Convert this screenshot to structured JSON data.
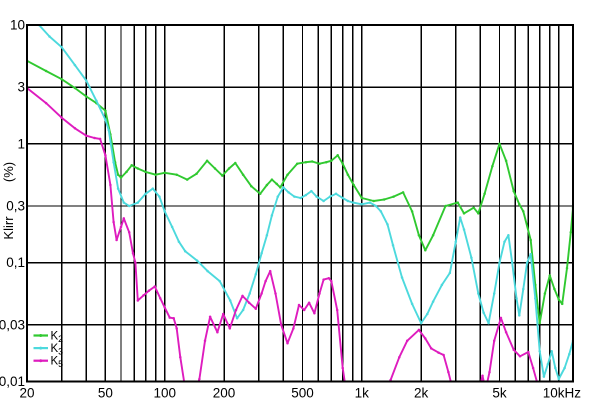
{
  "chart_data": {
    "type": "line",
    "title": "",
    "x_axis": {
      "scale": "log",
      "min_hz": 20,
      "max_hz": 11800,
      "ticks": [
        {
          "f": 20,
          "label": "20"
        },
        {
          "f": 30,
          "label": ""
        },
        {
          "f": 40,
          "label": ""
        },
        {
          "f": 50,
          "label": "50"
        },
        {
          "f": 60,
          "label": ""
        },
        {
          "f": 70,
          "label": ""
        },
        {
          "f": 80,
          "label": ""
        },
        {
          "f": 90,
          "label": ""
        },
        {
          "f": 100,
          "label": "100"
        },
        {
          "f": 200,
          "label": "200"
        },
        {
          "f": 300,
          "label": ""
        },
        {
          "f": 400,
          "label": ""
        },
        {
          "f": 500,
          "label": "500"
        },
        {
          "f": 600,
          "label": ""
        },
        {
          "f": 700,
          "label": ""
        },
        {
          "f": 800,
          "label": ""
        },
        {
          "f": 900,
          "label": ""
        },
        {
          "f": 1000,
          "label": "1k"
        },
        {
          "f": 2000,
          "label": "2k"
        },
        {
          "f": 3000,
          "label": ""
        },
        {
          "f": 4000,
          "label": ""
        },
        {
          "f": 5000,
          "label": "5k"
        },
        {
          "f": 6000,
          "label": ""
        },
        {
          "f": 7000,
          "label": ""
        },
        {
          "f": 8000,
          "label": ""
        },
        {
          "f": 9000,
          "label": ""
        },
        {
          "f": 10000,
          "label": "10kHz"
        }
      ]
    },
    "y_axis": {
      "scale": "log",
      "min": 0.01,
      "max": 10,
      "title_main": "Klirr",
      "title_unit": "(%)",
      "ticks": [
        {
          "v": 10,
          "label": "10"
        },
        {
          "v": 3,
          "label": "3"
        },
        {
          "v": 1,
          "label": "1"
        },
        {
          "v": 0.3,
          "label": "0,3"
        },
        {
          "v": 0.1,
          "label": "0,1"
        },
        {
          "v": 0.03,
          "label": "0,03"
        },
        {
          "v": 0.01,
          "label": "0,01"
        }
      ]
    },
    "grid": true,
    "legend_position": "bottom-left-inside",
    "colors": {
      "grid": "#000000",
      "frame": "#000000",
      "background": "#ffffff"
    },
    "series": [
      {
        "name": "K2",
        "label_base": "K",
        "label_sub": "2",
        "color": "#30c930",
        "points": [
          [
            20,
            5.0
          ],
          [
            25,
            4.1
          ],
          [
            30,
            3.5
          ],
          [
            35,
            2.95
          ],
          [
            40,
            2.5
          ],
          [
            45,
            2.2
          ],
          [
            50,
            1.9
          ],
          [
            53,
            1.2
          ],
          [
            56,
            0.7
          ],
          [
            58,
            0.55
          ],
          [
            60,
            0.52
          ],
          [
            64,
            0.58
          ],
          [
            68,
            0.66
          ],
          [
            73,
            0.62
          ],
          [
            80,
            0.58
          ],
          [
            90,
            0.55
          ],
          [
            100,
            0.57
          ],
          [
            115,
            0.55
          ],
          [
            130,
            0.5
          ],
          [
            145,
            0.56
          ],
          [
            164,
            0.72
          ],
          [
            180,
            0.62
          ],
          [
            196,
            0.54
          ],
          [
            212,
            0.62
          ],
          [
            228,
            0.69
          ],
          [
            250,
            0.55
          ],
          [
            275,
            0.44
          ],
          [
            305,
            0.38
          ],
          [
            330,
            0.45
          ],
          [
            350,
            0.5
          ],
          [
            370,
            0.46
          ],
          [
            386,
            0.43
          ],
          [
            420,
            0.55
          ],
          [
            470,
            0.68
          ],
          [
            520,
            0.7
          ],
          [
            560,
            0.71
          ],
          [
            610,
            0.68
          ],
          [
            660,
            0.7
          ],
          [
            700,
            0.72
          ],
          [
            755,
            0.8
          ],
          [
            800,
            0.68
          ],
          [
            850,
            0.55
          ],
          [
            910,
            0.45
          ],
          [
            1000,
            0.35
          ],
          [
            1150,
            0.33
          ],
          [
            1300,
            0.34
          ],
          [
            1450,
            0.36
          ],
          [
            1620,
            0.39
          ],
          [
            1800,
            0.27
          ],
          [
            1950,
            0.17
          ],
          [
            2100,
            0.127
          ],
          [
            2300,
            0.17
          ],
          [
            2660,
            0.3
          ],
          [
            3070,
            0.32
          ],
          [
            3300,
            0.26
          ],
          [
            3700,
            0.29
          ],
          [
            3900,
            0.26
          ],
          [
            4200,
            0.38
          ],
          [
            4600,
            0.65
          ],
          [
            5000,
            1.0
          ],
          [
            5400,
            0.72
          ],
          [
            5900,
            0.4
          ],
          [
            6300,
            0.31
          ],
          [
            6600,
            0.27
          ],
          [
            7200,
            0.155
          ],
          [
            7600,
            0.065
          ],
          [
            8000,
            0.031
          ],
          [
            8500,
            0.055
          ],
          [
            9000,
            0.078
          ],
          [
            9500,
            0.06
          ],
          [
            10000,
            0.049
          ],
          [
            10400,
            0.045
          ],
          [
            11000,
            0.09
          ],
          [
            11500,
            0.18
          ],
          [
            11800,
            0.29
          ]
        ]
      },
      {
        "name": "K3",
        "label_base": "K",
        "label_sub": "3",
        "color": "#4cd9dd",
        "points": [
          [
            21,
            12
          ],
          [
            23,
            10
          ],
          [
            26,
            8.0
          ],
          [
            30,
            6.5
          ],
          [
            35,
            4.6
          ],
          [
            40,
            3.4
          ],
          [
            45,
            2.3
          ],
          [
            50,
            1.6
          ],
          [
            52,
            1.3
          ],
          [
            55,
            0.7
          ],
          [
            58,
            0.42
          ],
          [
            62,
            0.32
          ],
          [
            66,
            0.3
          ],
          [
            73,
            0.32
          ],
          [
            80,
            0.38
          ],
          [
            87,
            0.42
          ],
          [
            94,
            0.36
          ],
          [
            100,
            0.27
          ],
          [
            109,
            0.2
          ],
          [
            118,
            0.15
          ],
          [
            127,
            0.125
          ],
          [
            146,
            0.104
          ],
          [
            165,
            0.085
          ],
          [
            190,
            0.07
          ],
          [
            215,
            0.048
          ],
          [
            233,
            0.034
          ],
          [
            250,
            0.04
          ],
          [
            270,
            0.055
          ],
          [
            290,
            0.08
          ],
          [
            310,
            0.12
          ],
          [
            330,
            0.17
          ],
          [
            350,
            0.25
          ],
          [
            375,
            0.36
          ],
          [
            400,
            0.43
          ],
          [
            425,
            0.39
          ],
          [
            455,
            0.36
          ],
          [
            490,
            0.35
          ],
          [
            520,
            0.37
          ],
          [
            555,
            0.4
          ],
          [
            590,
            0.36
          ],
          [
            640,
            0.33
          ],
          [
            690,
            0.36
          ],
          [
            740,
            0.38
          ],
          [
            800,
            0.35
          ],
          [
            850,
            0.33
          ],
          [
            905,
            0.32
          ],
          [
            1000,
            0.31
          ],
          [
            1100,
            0.32
          ],
          [
            1180,
            0.3
          ],
          [
            1250,
            0.27
          ],
          [
            1350,
            0.21
          ],
          [
            1440,
            0.14
          ],
          [
            1600,
            0.075
          ],
          [
            1800,
            0.045
          ],
          [
            2000,
            0.031
          ],
          [
            2150,
            0.037
          ],
          [
            2300,
            0.047
          ],
          [
            2550,
            0.065
          ],
          [
            2800,
            0.082
          ],
          [
            3000,
            0.15
          ],
          [
            3160,
            0.24
          ],
          [
            3300,
            0.19
          ],
          [
            3600,
            0.11
          ],
          [
            3900,
            0.055
          ],
          [
            4150,
            0.038
          ],
          [
            4400,
            0.031
          ],
          [
            4700,
            0.055
          ],
          [
            5000,
            0.1
          ],
          [
            5300,
            0.15
          ],
          [
            5550,
            0.17
          ],
          [
            5800,
            0.1
          ],
          [
            6100,
            0.05
          ],
          [
            6300,
            0.036
          ],
          [
            6600,
            0.06
          ],
          [
            6900,
            0.1
          ],
          [
            7200,
            0.118
          ],
          [
            7600,
            0.05
          ],
          [
            8000,
            0.018
          ],
          [
            8400,
            0.011
          ],
          [
            8800,
            0.014
          ],
          [
            9200,
            0.018
          ],
          [
            9600,
            0.013
          ],
          [
            10000,
            0.0105
          ],
          [
            10700,
            0.013
          ],
          [
            11300,
            0.017
          ],
          [
            11800,
            0.022
          ]
        ]
      },
      {
        "name": "K5",
        "label_base": "K",
        "label_sub": "5",
        "color": "#de1cbe",
        "points": [
          [
            20,
            2.95
          ],
          [
            25,
            2.2
          ],
          [
            30,
            1.66
          ],
          [
            35,
            1.35
          ],
          [
            40,
            1.17
          ],
          [
            44,
            1.12
          ],
          [
            47,
            1.1
          ],
          [
            50,
            0.8
          ],
          [
            53,
            0.45
          ],
          [
            55,
            0.22
          ],
          [
            57,
            0.155
          ],
          [
            60,
            0.2
          ],
          [
            62,
            0.236
          ],
          [
            66,
            0.18
          ],
          [
            69,
            0.12
          ],
          [
            71,
            0.1
          ],
          [
            73,
            0.048
          ],
          [
            78,
            0.053
          ],
          [
            83,
            0.058
          ],
          [
            89,
            0.063
          ],
          [
            95,
            0.05
          ],
          [
            100,
            0.042
          ],
          [
            106,
            0.0345
          ],
          [
            111,
            0.034
          ],
          [
            115,
            0.028
          ],
          [
            120,
            0.016
          ],
          [
            126,
            0.0095
          ],
          [
            133,
            0.007
          ],
          [
            142,
            0.008
          ],
          [
            150,
            0.0105
          ],
          [
            160,
            0.022
          ],
          [
            170,
            0.035
          ],
          [
            185,
            0.026
          ],
          [
            198,
            0.037
          ],
          [
            214,
            0.028
          ],
          [
            230,
            0.04
          ],
          [
            248,
            0.0525
          ],
          [
            268,
            0.046
          ],
          [
            290,
            0.041
          ],
          [
            310,
            0.055
          ],
          [
            325,
            0.07
          ],
          [
            343,
            0.085
          ],
          [
            365,
            0.055
          ],
          [
            390,
            0.03
          ],
          [
            420,
            0.021
          ],
          [
            450,
            0.028
          ],
          [
            480,
            0.044
          ],
          [
            510,
            0.04
          ],
          [
            540,
            0.046
          ],
          [
            575,
            0.0375
          ],
          [
            610,
            0.055
          ],
          [
            640,
            0.072
          ],
          [
            680,
            0.074
          ],
          [
            700,
            0.07
          ],
          [
            750,
            0.04
          ],
          [
            800,
            0.013
          ],
          [
            823,
            0.0095
          ],
          [
            900,
            0.006
          ],
          [
            1100,
            0.006
          ],
          [
            1300,
            0.008
          ],
          [
            1400,
            0.0103
          ],
          [
            1550,
            0.016
          ],
          [
            1700,
            0.022
          ],
          [
            1950,
            0.0272
          ],
          [
            2100,
            0.023
          ],
          [
            2250,
            0.019
          ],
          [
            2450,
            0.0175
          ],
          [
            2600,
            0.0167
          ],
          [
            2750,
            0.012
          ],
          [
            2850,
            0.0095
          ],
          [
            3100,
            0.007
          ],
          [
            3600,
            0.007
          ],
          [
            3950,
            0.0085
          ],
          [
            4100,
            0.0112
          ],
          [
            4250,
            0.0085
          ],
          [
            4450,
            0.012
          ],
          [
            4700,
            0.022
          ],
          [
            5080,
            0.0343
          ],
          [
            5400,
            0.026
          ],
          [
            5900,
            0.0185
          ],
          [
            6350,
            0.0163
          ],
          [
            7000,
            0.0177
          ],
          [
            7400,
            0.013
          ],
          [
            7800,
            0.0095
          ],
          [
            8100,
            0.007
          ]
        ]
      }
    ]
  }
}
